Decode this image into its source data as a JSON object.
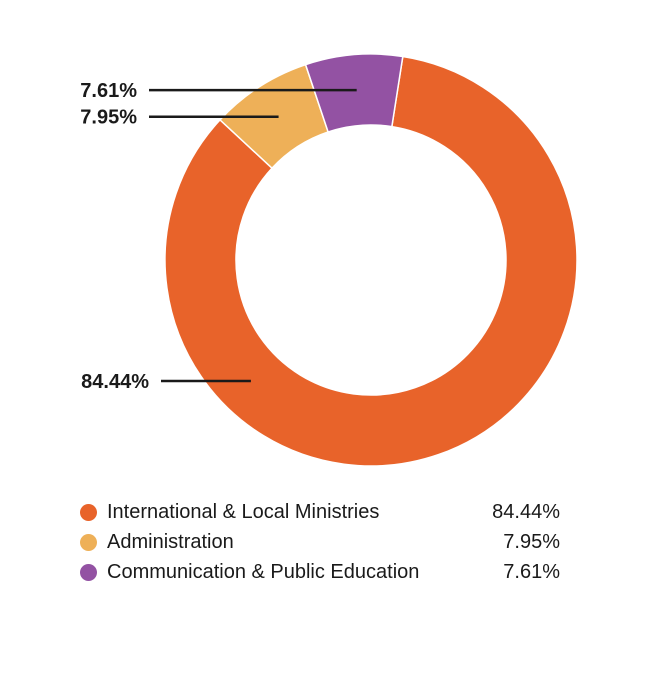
{
  "chart_data": {
    "type": "pie",
    "donut": true,
    "categories": [
      "International & Local Ministries",
      "Administration",
      "Communication & Public Education"
    ],
    "values": [
      84.44,
      7.95,
      7.61
    ],
    "value_labels": [
      "84.44%",
      "7.95%",
      "7.61%"
    ],
    "colors": [
      "#E8632A",
      "#EEB058",
      "#9352A3"
    ],
    "legend_placement": "bottom"
  }
}
